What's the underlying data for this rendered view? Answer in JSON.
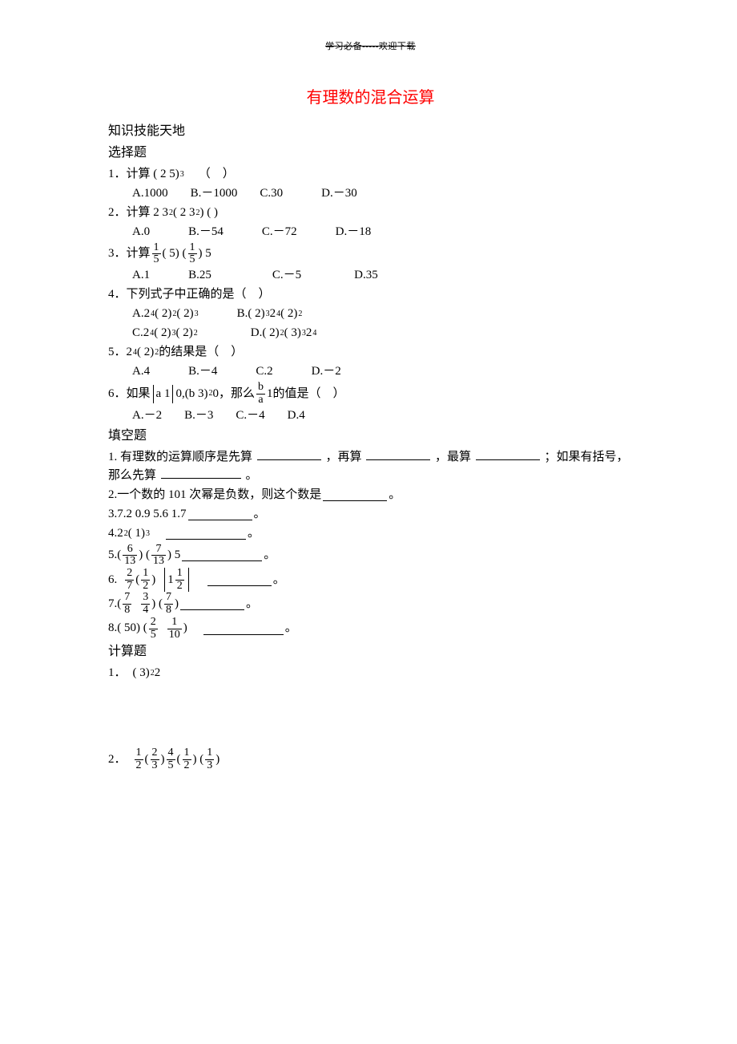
{
  "header": "学习必备-----欢迎下载",
  "title": "有理数的混合运算",
  "section1": "知识技能天地",
  "section2": "选择题",
  "mc": {
    "q1": {
      "num": "1．",
      "stem_a": "计算 ( 2 5)",
      "exp": "3",
      "tail": "（　）",
      "a": "A.1000",
      "b": "B.－1000",
      "c": "C.30",
      "d": "D.－30"
    },
    "q2": {
      "num": "2．",
      "stem_a": "计算 2 3",
      "exp1": "2",
      "stem_b": " ( 2 3",
      "exp2": "2",
      "stem_c": ") ( )",
      "a": "A.0",
      "b": "B.－54",
      "c": "C.－72",
      "d": "D.－18"
    },
    "q3": {
      "num": "3．",
      "stem_a": "计算",
      "stem_b": " ( 5) ( ",
      "stem_c": ") 5",
      "a": "A.1",
      "b": "B.25",
      "c": "C.－5",
      "d": "D.35"
    },
    "q4": {
      "num": "4．",
      "stem": "下列式子中正确的是（　）",
      "rowA": {
        "label": "A.",
        "p1a": " 2",
        "e1": "4",
        "p1b": " ( 2)",
        "e2": "2",
        "p1c": " ( 2)",
        "e3": "3"
      },
      "rowB": {
        "label": "B.",
        "p1a": "( 2)",
        "e1": "3",
        "p1b": " 2",
        "e2": "4",
        "p1c": " ( 2)",
        "e3": "2"
      },
      "rowC": {
        "label": "C.",
        "p1a": " 2",
        "e1": "4",
        "p1b": " ( 2)",
        "e2": "3",
        "p1c": " ( 2)",
        "e3": "2"
      },
      "rowD": {
        "label": "D.",
        "p1a": "( 2)",
        "e1": "2",
        "p1b": " ( 3)",
        "e2": "3",
        "p1c": " 2",
        "e3": "4"
      }
    },
    "q5": {
      "num": "5．",
      "stem_a": " 2",
      "e1": "4",
      "stem_b": " ( 2)",
      "e2": "2",
      "stem_c": "的结果是（　）",
      "a": "A.4",
      "b": "B.－4",
      "c": "C.2",
      "d": "D.－2"
    },
    "q6": {
      "num": "6．",
      "stem_a": "如果",
      "abs": "a 1",
      "stem_b": " 0,(b 3)",
      "e1": "2",
      "stem_c": " 0，那么",
      "frac_n": "b",
      "frac_d": "a",
      "stem_d": " 1的值是（　）",
      "a": "A.－2",
      "b": "B.－3",
      "c": "C.－4",
      "d": "D.4"
    }
  },
  "fill_heading": "填空题",
  "fill": {
    "q1": {
      "num": "1.",
      "a": "有理数的运算顺序是先算 ",
      "b": "，再算",
      "c": "，最算",
      "d": "；如果有括号，那么先算 ",
      "e": "。"
    },
    "q2": {
      "num": "2.",
      "a": "一个数的 101 次幂是负数，则这个数是 ",
      "b": "。"
    },
    "q3": {
      "num": "3.",
      "a": " 7.2 0.9 5.6 1.7 ",
      "b": "。"
    },
    "q4": {
      "num": "4.",
      "a": " 2",
      "e1": "2",
      "b": " ( 1)",
      "e2": "3",
      "c": "。"
    },
    "q5": {
      "num": "5.",
      "a": "( ",
      "b": ") ( ",
      "c": ") 5 ",
      "d": "。"
    },
    "q6": {
      "num": "6.",
      "a": " ( ",
      "b": ") ",
      "abs_pre": " 1",
      "c": "。"
    },
    "q7": {
      "num": "7.",
      "a": "(",
      "b": ") ( ",
      "c": ") ",
      "d": "。"
    },
    "q8": {
      "num": "8.",
      "a": "( 50) (",
      "b": ") ",
      "c": "。"
    }
  },
  "calc_heading": "计算题",
  "calc": {
    "q1": {
      "num": "1．",
      "a": " ( 3)",
      "e1": "2",
      "b": " 2"
    },
    "q2": {
      "num": "2．",
      "a": " ( ",
      "b": ") ",
      "c": " ( ",
      "d": ") ( ",
      "e": ")"
    }
  },
  "frac": {
    "one_fifth": {
      "n": "1",
      "d": "5"
    },
    "six_13": {
      "n": "6",
      "d": "13"
    },
    "seven_13": {
      "n": "7",
      "d": "13"
    },
    "two_7": {
      "n": "2",
      "d": "7"
    },
    "one_2": {
      "n": "1",
      "d": "2"
    },
    "seven_8": {
      "n": "7",
      "d": "8"
    },
    "three_4": {
      "n": "3",
      "d": "4"
    },
    "two_5": {
      "n": "2",
      "d": "5"
    },
    "one_10": {
      "n": "1",
      "d": "10"
    },
    "two_3": {
      "n": "2",
      "d": "3"
    },
    "four_5": {
      "n": "4",
      "d": "5"
    },
    "one_3": {
      "n": "1",
      "d": "3"
    }
  }
}
